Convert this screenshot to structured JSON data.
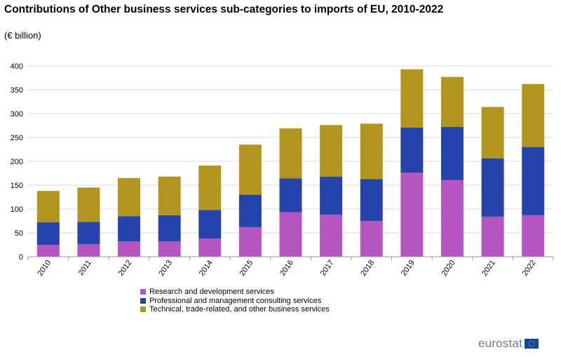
{
  "chart_data": {
    "type": "bar",
    "stacked": true,
    "title": "Contributions of Other business services sub-categories to imports of EU, 2010-2022",
    "subtitle": "(€ billion)",
    "xlabel": "",
    "ylabel": "",
    "ylim": [
      0,
      400
    ],
    "yticks": [
      0,
      50,
      100,
      150,
      200,
      250,
      300,
      350,
      400
    ],
    "grid": true,
    "legend_position": "bottom",
    "categories": [
      "2010",
      "2011",
      "2012",
      "2013",
      "2014",
      "2015",
      "2016",
      "2017",
      "2018",
      "2019",
      "2020",
      "2021",
      "2022"
    ],
    "series": [
      {
        "name": "Research and development services",
        "color": "#b455c0",
        "values": [
          25,
          26,
          32,
          32,
          38,
          62,
          93,
          88,
          75,
          176,
          161,
          84,
          87
        ]
      },
      {
        "name": "Professional and management consulting services",
        "color": "#2543aa",
        "values": [
          47,
          47,
          53,
          55,
          60,
          68,
          71,
          80,
          88,
          95,
          111,
          122,
          143
        ]
      },
      {
        "name": "Technical, trade-related, and other business services",
        "color": "#b1951f",
        "values": [
          66,
          72,
          80,
          81,
          93,
          105,
          105,
          108,
          116,
          122,
          105,
          108,
          132
        ]
      }
    ]
  },
  "branding": {
    "logo_text": "eurostat",
    "flag_icon": "eu-flag-icon"
  }
}
